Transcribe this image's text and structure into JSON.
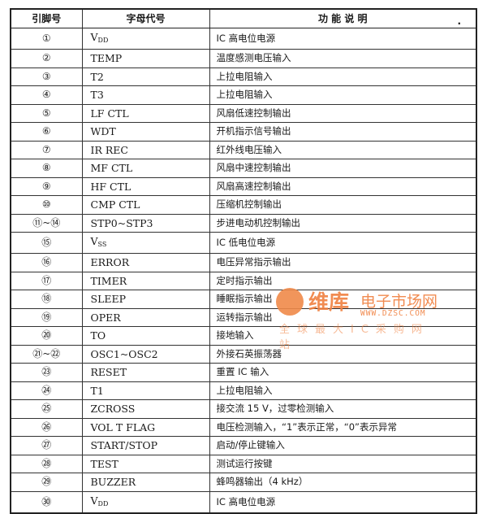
{
  "table": {
    "headers": [
      "引脚号",
      "字母代号",
      "功 能 说 明"
    ],
    "rows": [
      {
        "pin": "①",
        "code": "V",
        "sub": "DD",
        "desc": "IC 高电位电源"
      },
      {
        "pin": "②",
        "code": "TEMP",
        "desc": "温度感测电压输入"
      },
      {
        "pin": "③",
        "code": "T2",
        "desc": "上拉电阻输入"
      },
      {
        "pin": "④",
        "code": "T3",
        "desc": "上拉电阻输入"
      },
      {
        "pin": "⑤",
        "code": "LF CTL",
        "desc": "风扇低速控制输出"
      },
      {
        "pin": "⑥",
        "code": "WDT",
        "desc": "开机指示信号输出"
      },
      {
        "pin": "⑦",
        "code": "IR REC",
        "desc": "红外线电压输入"
      },
      {
        "pin": "⑧",
        "code": "MF CTL",
        "desc": "风扇中速控制输出"
      },
      {
        "pin": "⑨",
        "code": "HF CTL",
        "desc": "风扇高速控制输出"
      },
      {
        "pin": "⑩",
        "code": "CMP CTL",
        "desc": "压缩机控制输出"
      },
      {
        "pin": "⑪~⑭",
        "code": "STP0~STP3",
        "desc": "步进电动机控制输出"
      },
      {
        "pin": "⑮",
        "code": "V",
        "sub": "SS",
        "desc": "IC 低电位电源"
      },
      {
        "pin": "⑯",
        "code": "ERROR",
        "desc": "电压异常指示输出"
      },
      {
        "pin": "⑰",
        "code": "TIMER",
        "desc": "定时指示输出"
      },
      {
        "pin": "⑱",
        "code": "SLEEP",
        "desc": "睡眠指示输出"
      },
      {
        "pin": "⑲",
        "code": "OPER",
        "desc": "运转指示输出"
      },
      {
        "pin": "⑳",
        "code": "TO",
        "desc": "接地输入"
      },
      {
        "pin": "㉑~㉒",
        "code": "OSC1~OSC2",
        "desc": "外接石英振荡器"
      },
      {
        "pin": "㉓",
        "code": "RESET",
        "desc": "重置 IC 输入"
      },
      {
        "pin": "㉔",
        "code": "T1",
        "desc": "上拉电阻输入"
      },
      {
        "pin": "㉕",
        "code": "ZCROSS",
        "desc": "接交流 15 V，过零检测输入"
      },
      {
        "pin": "㉖",
        "code": "VOL T FLAG",
        "desc": "电压检测输入，“1”表示正常，“0”表示异常"
      },
      {
        "pin": "㉗",
        "code": "START/STOP",
        "desc": "启动/停止键输入"
      },
      {
        "pin": "㉘",
        "code": "TEST",
        "desc": "测试运行按键"
      },
      {
        "pin": "㉙",
        "code": "BUZZER",
        "desc": "蜂鸣器输出（4 kHz）"
      },
      {
        "pin": "㉚",
        "code": "V",
        "sub": "DD",
        "desc": "IC 高电位电源"
      }
    ]
  },
  "watermark": {
    "brand": "维库",
    "name": "电子市场网",
    "url": "WWW.DZSC.COM",
    "slogan": "全球最大IC采购网站",
    "color": "#f08040"
  }
}
